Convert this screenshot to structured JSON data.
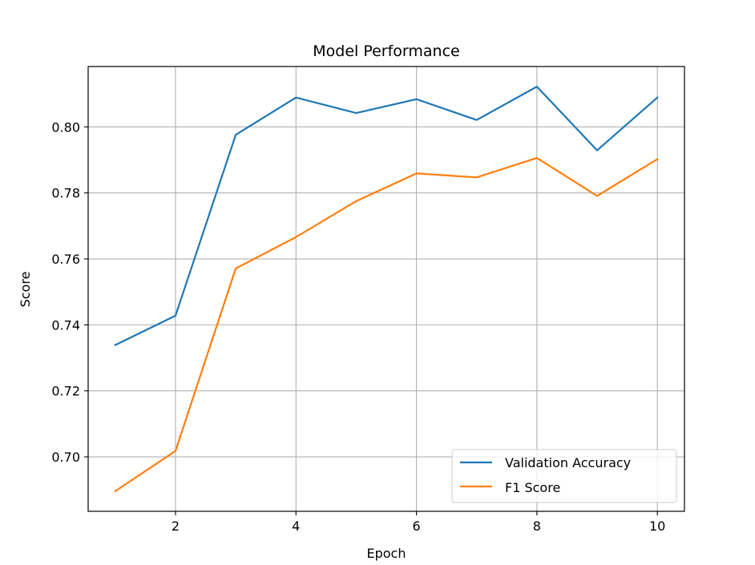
{
  "chart_data": {
    "type": "line",
    "title": "Model Performance",
    "xlabel": "Epoch",
    "ylabel": "Score",
    "x": [
      1,
      2,
      3,
      4,
      5,
      6,
      7,
      8,
      9,
      10
    ],
    "xlim": [
      0.55,
      10.45
    ],
    "ylim": [
      0.6835,
      0.8183
    ],
    "xticks": [
      2,
      4,
      6,
      8,
      10
    ],
    "yticks": [
      0.7,
      0.72,
      0.74,
      0.76,
      0.78,
      0.8
    ],
    "ytick_labels": [
      "0.70",
      "0.72",
      "0.74",
      "0.76",
      "0.78",
      "0.80"
    ],
    "grid": true,
    "legend_position": "lower right",
    "series": [
      {
        "name": "Validation Accuracy",
        "color": "#1f77b4",
        "values": [
          0.7339,
          0.7428,
          0.7976,
          0.8089,
          0.8042,
          0.8084,
          0.8021,
          0.8122,
          0.7929,
          0.8089
        ]
      },
      {
        "name": "F1 Score",
        "color": "#ff7f0e",
        "values": [
          0.6896,
          0.7018,
          0.7571,
          0.7666,
          0.7775,
          0.7859,
          0.7847,
          0.7906,
          0.7791,
          0.7902
        ]
      }
    ]
  }
}
